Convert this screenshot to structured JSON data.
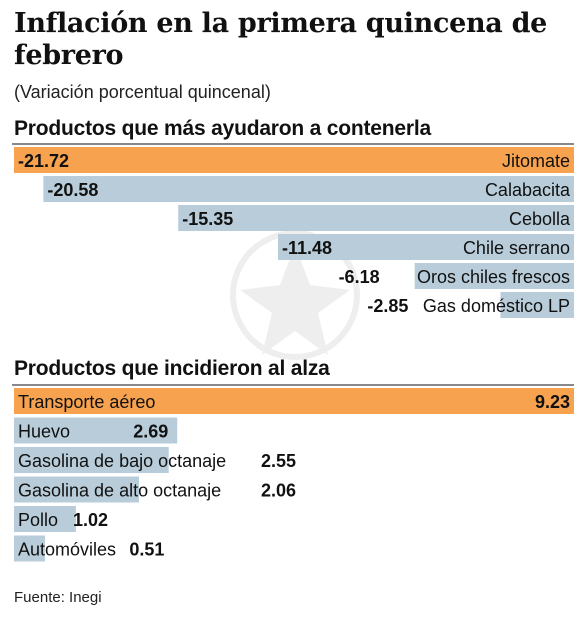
{
  "header": {
    "title": "Inflación en la primera quincena de febrero",
    "subtitle": "(Variación porcentual quincenal)"
  },
  "source": "Fuente: Inegi",
  "colors": {
    "highlight": "#f7a24f",
    "bar": "#b8cdd9",
    "text": "#111111"
  },
  "chart_data": [
    {
      "type": "bar",
      "title": "Productos que más ayudaron a contenerla",
      "orientation": "horizontal",
      "categories": [
        "Jitomate",
        "Calabacita",
        "Cebolla",
        "Chile serrano",
        "Oros chiles frescos",
        "Gas doméstico LP"
      ],
      "values": [
        -21.72,
        -20.58,
        -15.35,
        -11.48,
        -6.18,
        -2.85
      ],
      "value_labels": [
        "-21.72",
        "-20.58",
        "-15.35",
        "-11.48",
        "-6.18",
        "-2.85"
      ],
      "highlight_index": 0
    },
    {
      "type": "bar",
      "title": "Productos que incidieron al alza",
      "orientation": "horizontal",
      "categories": [
        "Transporte aéreo",
        "Huevo",
        "Gasolina de bajo octanaje",
        "Gasolina de alto octanaje",
        "Pollo",
        "Automóviles"
      ],
      "values": [
        9.23,
        2.69,
        2.55,
        2.06,
        1.02,
        0.51
      ],
      "value_labels": [
        "9.23",
        "2.69",
        "2.55",
        "2.06",
        "1.02",
        "0.51"
      ],
      "highlight_index": 0
    }
  ]
}
